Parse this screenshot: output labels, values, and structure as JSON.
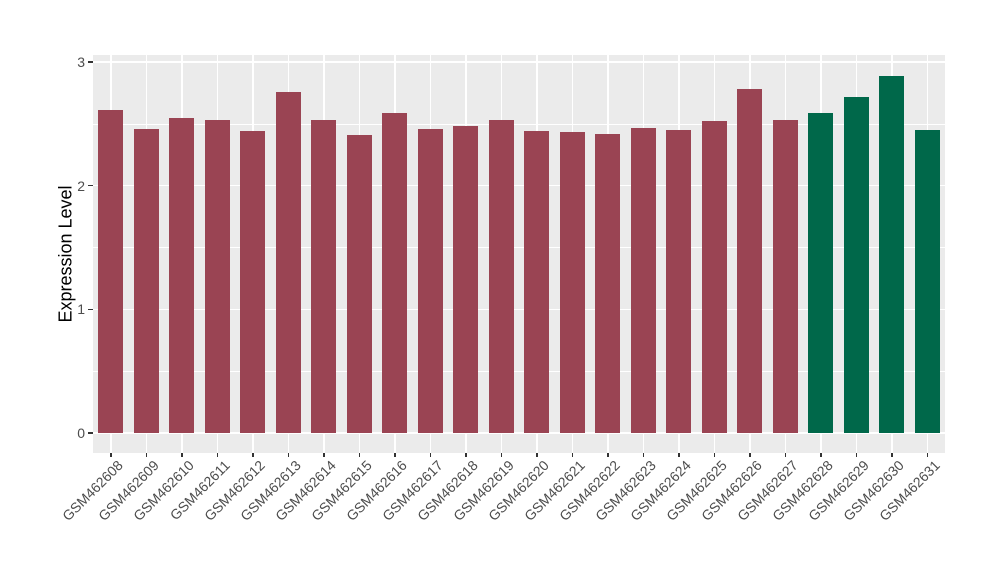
{
  "chart_data": {
    "type": "bar",
    "title": "",
    "xlabel": "",
    "ylabel": "Expression Level",
    "ylim": [
      0,
      3
    ],
    "yticks": [
      0,
      1,
      2,
      3
    ],
    "ytick_labels": [
      "0",
      "1",
      "2",
      "3"
    ],
    "yticks_minor": [
      0.5,
      1.5,
      2.5
    ],
    "grid": true,
    "legend": false,
    "x_tick_rotation_deg": 45,
    "categories": [
      "GSM462608",
      "GSM462609",
      "GSM462610",
      "GSM462611",
      "GSM462612",
      "GSM462613",
      "GSM462614",
      "GSM462615",
      "GSM462616",
      "GSM462617",
      "GSM462618",
      "GSM462619",
      "GSM462620",
      "GSM462621",
      "GSM462622",
      "GSM462623",
      "GSM462624",
      "GSM462625",
      "GSM462626",
      "GSM462627",
      "GSM462628",
      "GSM462629",
      "GSM462630",
      "GSM462631"
    ],
    "values": [
      2.61,
      2.46,
      2.55,
      2.53,
      2.44,
      2.76,
      2.53,
      2.41,
      2.59,
      2.46,
      2.48,
      2.53,
      2.44,
      2.43,
      2.42,
      2.47,
      2.45,
      2.52,
      2.78,
      2.53,
      2.59,
      2.72,
      2.89,
      2.45
    ],
    "bar_colors": [
      "#9A4453",
      "#9A4453",
      "#9A4453",
      "#9A4453",
      "#9A4453",
      "#9A4453",
      "#9A4453",
      "#9A4453",
      "#9A4453",
      "#9A4453",
      "#9A4453",
      "#9A4453",
      "#9A4453",
      "#9A4453",
      "#9A4453",
      "#9A4453",
      "#9A4453",
      "#9A4453",
      "#9A4453",
      "#9A4453",
      "#00684A",
      "#00684A",
      "#00684A",
      "#00684A"
    ],
    "colors": {
      "bar_red": "#9A4453",
      "bar_green": "#00684A",
      "panel_background": "#EBEBEB",
      "gridline": "#FFFFFF",
      "tick_mark": "#333333",
      "axis_text": "#4D4D4D",
      "axis_title": "#000000",
      "figure_background": "#FFFFFF"
    }
  }
}
